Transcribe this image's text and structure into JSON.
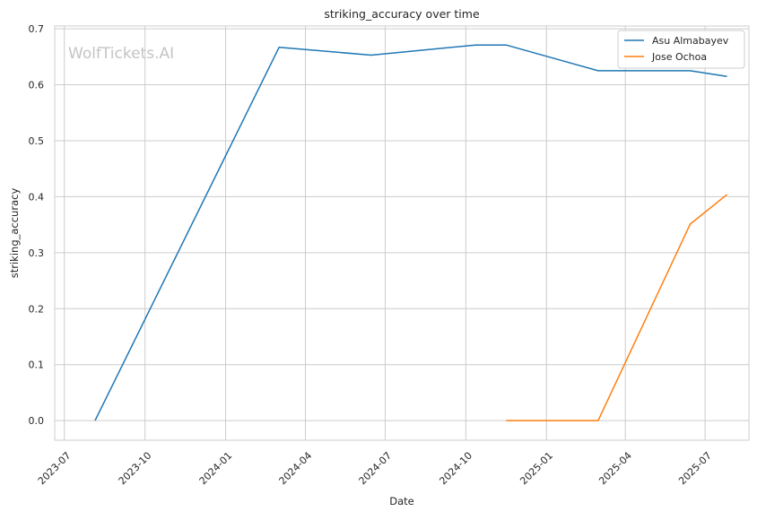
{
  "chart_data": {
    "type": "line",
    "title": "striking_accuracy over time",
    "xlabel": "Date",
    "ylabel": "striking_accuracy",
    "watermark": "WolfTickets.AI",
    "xlim": [
      "2023-06-20",
      "2025-08-20"
    ],
    "ylim": [
      -0.035,
      0.705
    ],
    "x_ticks": [
      "2023-07-01",
      "2023-10-01",
      "2024-01-01",
      "2024-04-01",
      "2024-07-01",
      "2024-10-01",
      "2025-01-01",
      "2025-04-01",
      "2025-07-01"
    ],
    "x_tick_labels": [
      "2023-07",
      "2023-10",
      "2024-01",
      "2024-04",
      "2024-07",
      "2024-10",
      "2025-01",
      "2025-04",
      "2025-07"
    ],
    "y_ticks": [
      0.0,
      0.1,
      0.2,
      0.3,
      0.4,
      0.5,
      0.6,
      0.7
    ],
    "y_tick_labels": [
      "0.0",
      "0.1",
      "0.2",
      "0.3",
      "0.4",
      "0.5",
      "0.6",
      "0.7"
    ],
    "grid": true,
    "legend_position": "top-right",
    "series": [
      {
        "name": "Asu Almabayev",
        "color": "#1f77b4",
        "points": [
          {
            "x": "2023-08-05",
            "y": 0.0
          },
          {
            "x": "2024-03-02",
            "y": 0.667
          },
          {
            "x": "2024-06-15",
            "y": 0.653
          },
          {
            "x": "2024-10-12",
            "y": 0.671
          },
          {
            "x": "2024-11-16",
            "y": 0.671
          },
          {
            "x": "2025-03-01",
            "y": 0.625
          },
          {
            "x": "2025-06-14",
            "y": 0.625
          },
          {
            "x": "2025-07-26",
            "y": 0.615
          }
        ]
      },
      {
        "name": "Jose Ochoa",
        "color": "#ff7f0e",
        "points": [
          {
            "x": "2024-11-16",
            "y": 0.0
          },
          {
            "x": "2025-03-01",
            "y": 0.0
          },
          {
            "x": "2025-06-14",
            "y": 0.351
          },
          {
            "x": "2025-07-26",
            "y": 0.404
          }
        ]
      }
    ]
  }
}
